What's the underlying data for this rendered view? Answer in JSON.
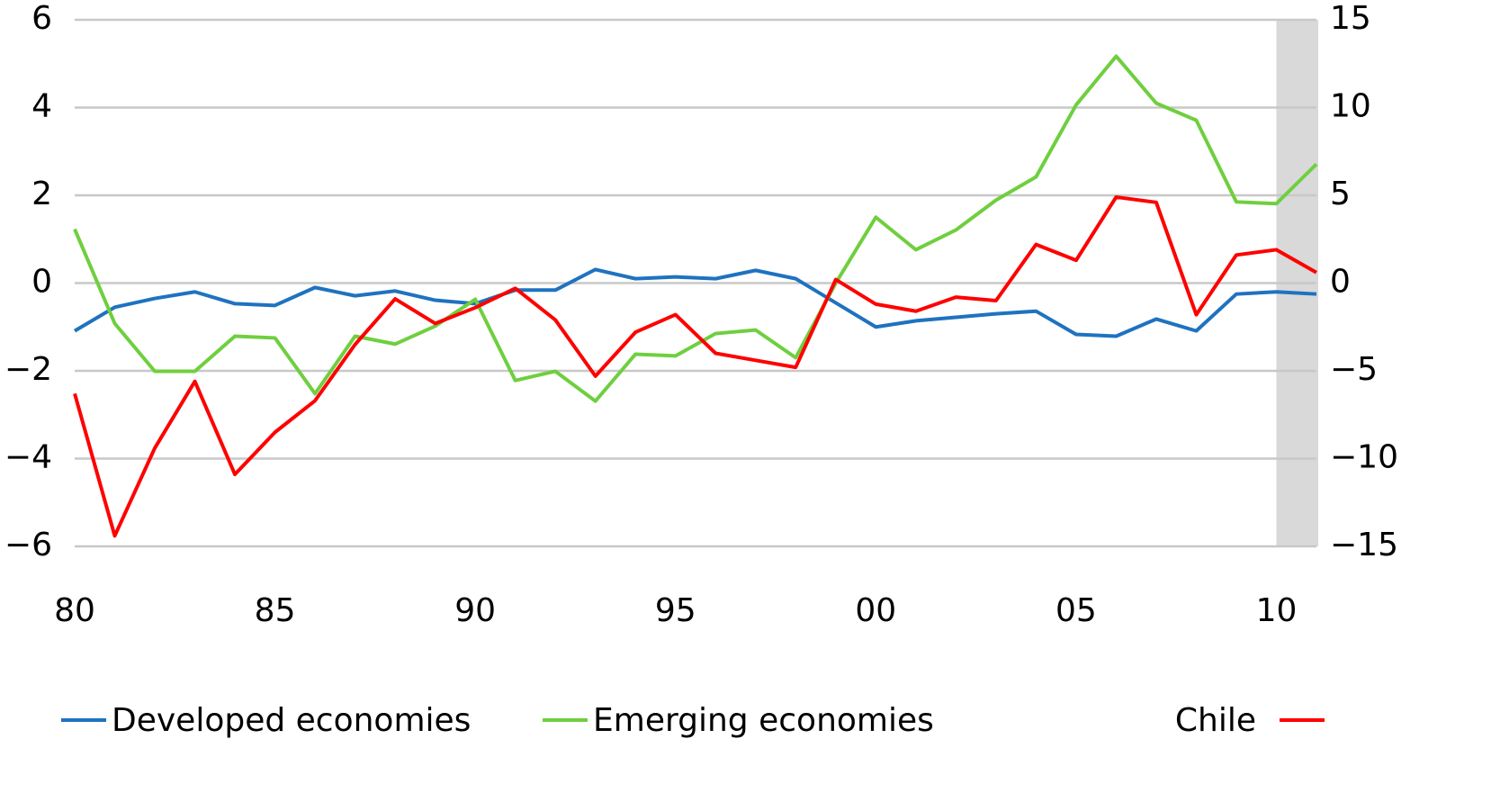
{
  "chart_data": {
    "type": "line",
    "categories": [
      "80",
      null,
      null,
      null,
      null,
      "85",
      null,
      null,
      null,
      null,
      "90",
      null,
      null,
      null,
      null,
      "95",
      null,
      null,
      null,
      null,
      "00",
      null,
      null,
      null,
      null,
      "05",
      null,
      null,
      null,
      null,
      "10",
      null
    ],
    "series": [
      {
        "name": "Developed economies",
        "color": "#1f72c0",
        "values": [
          -1.09,
          -0.55,
          -0.35,
          -0.2,
          -0.47,
          -0.51,
          -0.1,
          -0.29,
          -0.18,
          -0.39,
          -0.47,
          -0.16,
          -0.16,
          0.31,
          0.1,
          0.14,
          0.1,
          0.29,
          0.1,
          -0.45,
          -1.0,
          -0.86,
          -0.78,
          -0.7,
          -0.64,
          -1.17,
          -1.21,
          -0.82,
          -1.09,
          -0.25,
          -0.2,
          -0.25
        ]
      },
      {
        "name": "Emerging economies",
        "color": "#6fcf3f",
        "values": [
          1.23,
          -0.92,
          -2.01,
          -2.01,
          -1.21,
          -1.25,
          -2.52,
          -1.21,
          -1.39,
          -0.98,
          -0.37,
          -2.22,
          -2.01,
          -2.69,
          -1.62,
          -1.66,
          -1.15,
          -1.07,
          -1.7,
          0,
          1.5,
          0.76,
          1.21,
          1.89,
          2.42,
          4.06,
          5.17,
          4.1,
          3.71,
          1.85,
          1.81,
          2.71
        ]
      },
      {
        "name": "Chile",
        "color": "#ff0000",
        "axis": "y2",
        "values": [
          -6.3,
          -14.4,
          -9.4,
          -5.6,
          -10.9,
          -8.5,
          -6.7,
          -3.5,
          -0.9,
          -2.3,
          -1.4,
          -0.3,
          -2.1,
          -5.3,
          -2.8,
          -1.8,
          -4.0,
          -4.4,
          -4.8,
          0.2,
          -1.2,
          -1.6,
          -0.8,
          -1.0,
          2.2,
          1.3,
          4.9,
          4.6,
          -1.8,
          1.6,
          1.9,
          0.6
        ]
      }
    ],
    "ylim": [
      -6,
      6
    ],
    "yticks": [
      {
        "value": -6,
        "label": "−6"
      },
      {
        "value": -4,
        "label": "−4"
      },
      {
        "value": -2,
        "label": "−2"
      },
      0,
      2,
      4,
      6
    ],
    "y2lim": [
      -15,
      15
    ],
    "y2ticks": [
      {
        "value": -15,
        "label": "−15"
      },
      {
        "value": -10,
        "label": "−10"
      },
      {
        "value": -5,
        "label": "−5"
      },
      0,
      5,
      10,
      15
    ],
    "grid": true,
    "shaded_from_index": 30,
    "shade_color": "#d9d9d9",
    "legend": "bottom"
  }
}
